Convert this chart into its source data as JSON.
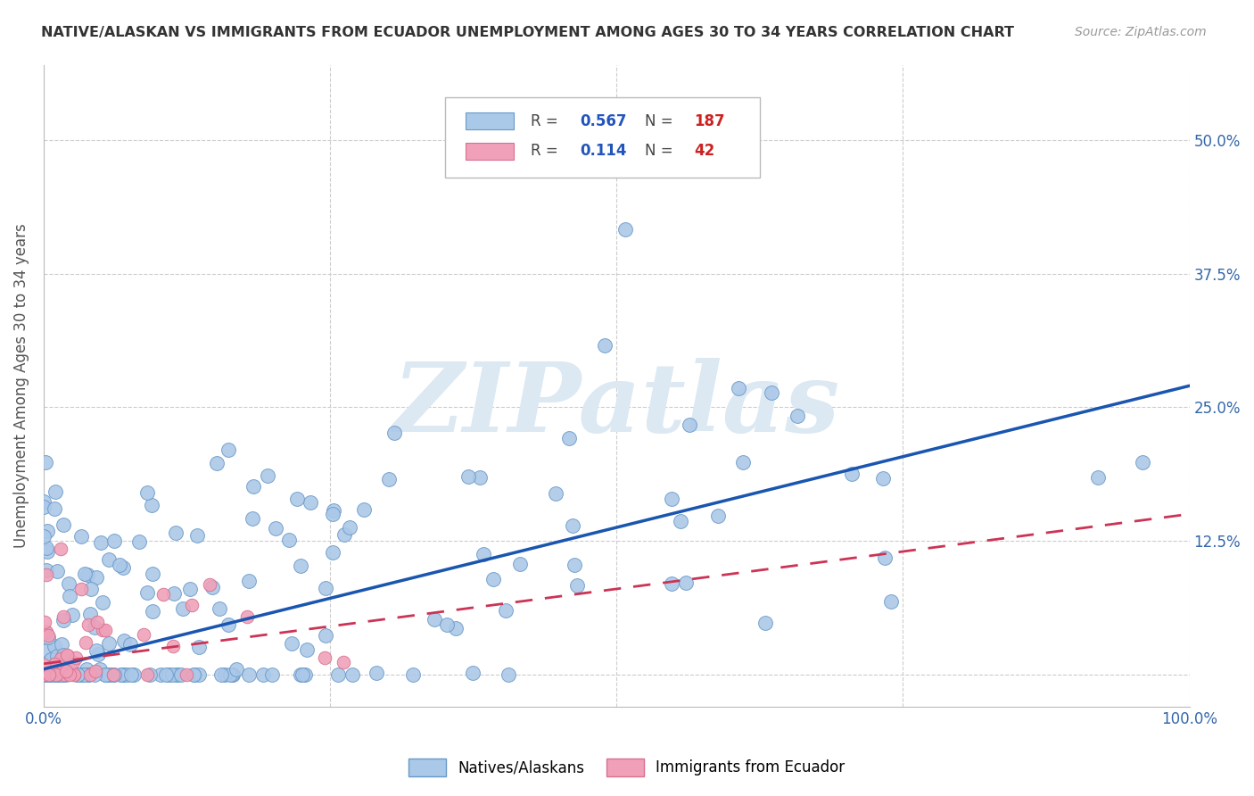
{
  "title": "NATIVE/ALASKAN VS IMMIGRANTS FROM ECUADOR UNEMPLOYMENT AMONG AGES 30 TO 34 YEARS CORRELATION CHART",
  "source": "Source: ZipAtlas.com",
  "ylabel": "Unemployment Among Ages 30 to 34 years",
  "xlim": [
    0.0,
    1.0
  ],
  "ylim": [
    -0.03,
    0.57
  ],
  "xticks": [
    0.0,
    0.25,
    0.5,
    0.75,
    1.0
  ],
  "xticklabels": [
    "0.0%",
    "",
    "",
    "",
    "100.0%"
  ],
  "ytick_positions": [
    0.0,
    0.125,
    0.25,
    0.375,
    0.5
  ],
  "yticklabels": [
    "",
    "12.5%",
    "25.0%",
    "37.5%",
    "50.0%"
  ],
  "background_color": "#ffffff",
  "grid_color": "#cccccc",
  "watermark": "ZIPatlas",
  "watermark_color": "#dce8f2",
  "blue_color": "#aac8e8",
  "blue_edge": "#6898c8",
  "pink_color": "#f0a0b8",
  "pink_edge": "#d87090",
  "trend_blue": "#1a55b0",
  "trend_pink": "#cc3355",
  "n_blue": 187,
  "n_pink": 42,
  "blue_intercept": 0.005,
  "blue_slope": 0.265,
  "pink_intercept": 0.01,
  "pink_slope": 0.14
}
